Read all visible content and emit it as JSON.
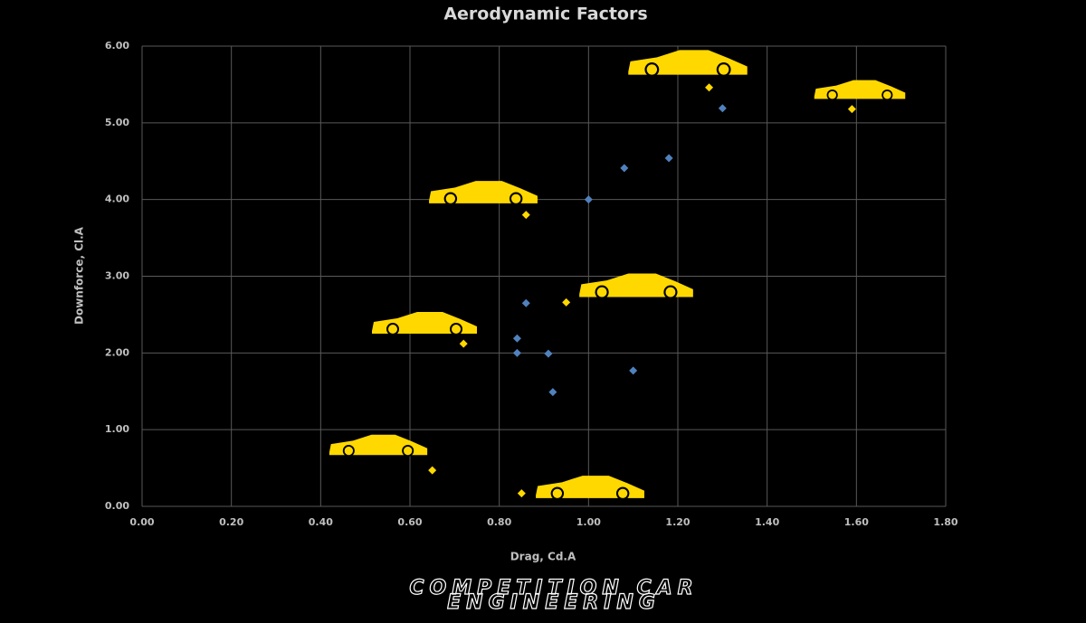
{
  "chart_data": {
    "type": "scatter",
    "title": "Aerodynamic Factors",
    "x_label": "Drag, Cd.A",
    "y_label": "Downforce, Cl.A",
    "series": [
      {
        "color": "#ffd800",
        "x": [
          1.27,
          1.59,
          0.86,
          0.95,
          0.72,
          0.65,
          0.85
        ],
        "values": [
          5.46,
          5.18,
          3.8,
          2.66,
          2.12,
          0.47,
          0.17
        ]
      },
      {
        "color": "#4f81bd",
        "x": [
          1.3,
          1.18,
          1.08,
          1.0,
          0.86,
          0.84,
          0.84,
          0.91,
          1.1,
          0.92
        ],
        "values": [
          5.19,
          4.54,
          4.41,
          4.0,
          2.65,
          2.19,
          2.0,
          1.99,
          1.77,
          1.49
        ]
      }
    ],
    "xlim": [
      0,
      1.8
    ],
    "xticks": [
      {
        "value": 0,
        "label": "0.00"
      },
      {
        "value": 0.2,
        "label": "0.20"
      },
      {
        "value": 0.4,
        "label": "0.40"
      },
      {
        "value": 0.6,
        "label": "0.60"
      },
      {
        "value": 0.8,
        "label": "0.80"
      },
      {
        "value": 1.0,
        "label": "1.00"
      },
      {
        "value": 1.2,
        "label": "1.20"
      },
      {
        "value": 1.4,
        "label": "1.40"
      },
      {
        "value": 1.6,
        "label": "1.60"
      },
      {
        "value": 1.8,
        "label": "1.80"
      }
    ],
    "ylim": [
      0,
      6
    ],
    "yticks": [
      {
        "value": 0,
        "label": "0.00"
      },
      {
        "value": 1,
        "label": "1.00"
      },
      {
        "value": 2,
        "label": "2.00"
      },
      {
        "value": 3,
        "label": "3.00"
      },
      {
        "value": 4,
        "label": "4.00"
      },
      {
        "value": 5,
        "label": "5.00"
      },
      {
        "value": 6,
        "label": "6.00"
      }
    ],
    "grid": true
  },
  "footer": {
    "lines": [
      "COMPETITION CAR",
      "ENGINEERING"
    ]
  }
}
